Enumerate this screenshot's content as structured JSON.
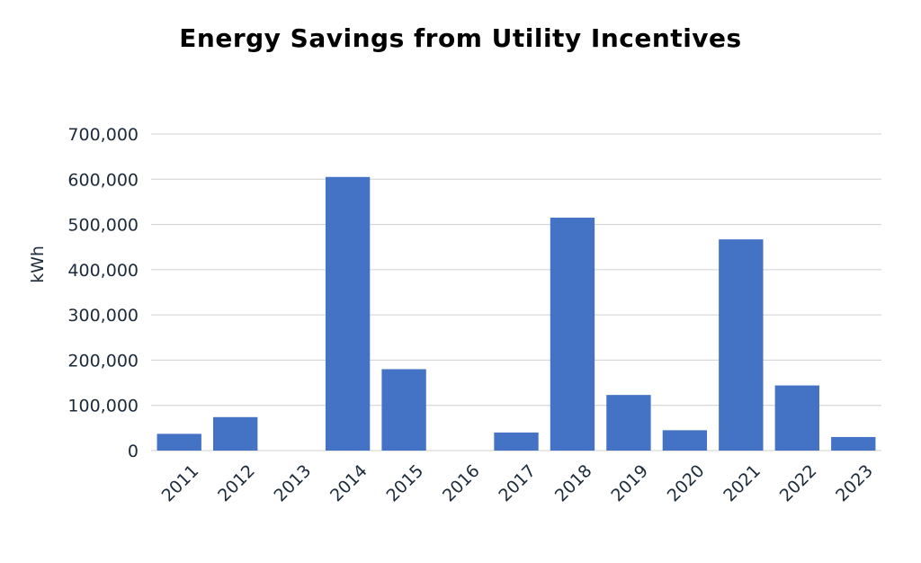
{
  "chart_data": {
    "type": "bar",
    "title": "Energy Savings from Utility Incentives",
    "xlabel": "",
    "ylabel": "kWh",
    "categories": [
      "2011",
      "2012",
      "2013",
      "2014",
      "2015",
      "2016",
      "2017",
      "2018",
      "2019",
      "2020",
      "2021",
      "2022",
      "2023"
    ],
    "values": [
      37000,
      74000,
      0,
      605000,
      180000,
      0,
      40000,
      515000,
      123000,
      45000,
      467000,
      144000,
      30000
    ],
    "ylim": [
      0,
      700000
    ],
    "yticks": [
      0,
      100000,
      200000,
      300000,
      400000,
      500000,
      600000,
      700000
    ],
    "ytick_labels": [
      "0",
      "100,000",
      "200,000",
      "300,000",
      "400,000",
      "500,000",
      "600,000",
      "700,000"
    ],
    "grid": true,
    "legend": false,
    "bar_color": "#4472c4",
    "grid_color": "#d0d0d0",
    "text_color": "#1c2a3a"
  }
}
